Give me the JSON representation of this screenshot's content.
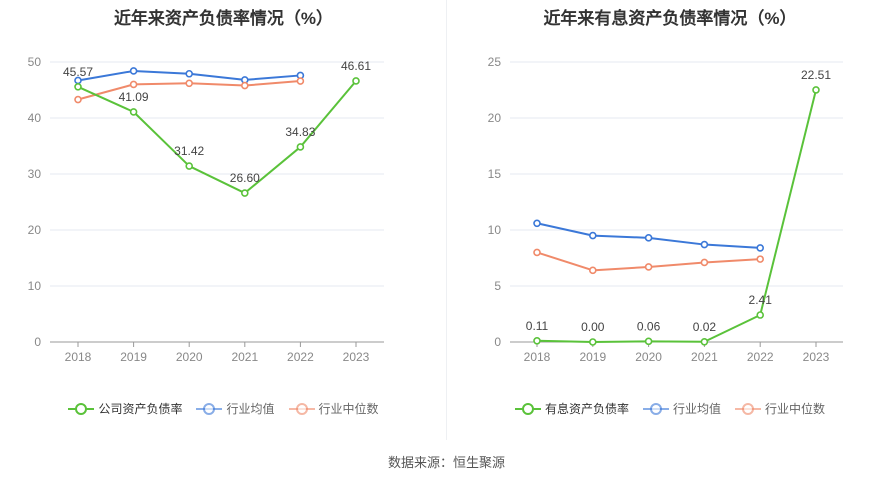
{
  "source_text": "数据来源：恒生聚源",
  "chart_data": [
    {
      "type": "line",
      "title": "近年来资产负债率情况（%）",
      "categories": [
        "2018",
        "2019",
        "2020",
        "2021",
        "2022",
        "2023"
      ],
      "ylim": [
        0,
        50
      ],
      "yticks": [
        0,
        10,
        20,
        30,
        40,
        50
      ],
      "grid": true,
      "legend_position": "bottom",
      "series": [
        {
          "name": "公司资产负债率",
          "color": "#5ac23a",
          "values": [
            45.57,
            41.09,
            31.42,
            26.6,
            34.83,
            46.61
          ],
          "labels": [
            "45.57",
            "41.09",
            "31.42",
            "26.60",
            "34.83",
            "46.61"
          ],
          "highlight": true
        },
        {
          "name": "行业均值",
          "color": "#3b78d8",
          "values": [
            46.7,
            48.4,
            47.9,
            46.8,
            47.6,
            null
          ]
        },
        {
          "name": "行业中位数",
          "color": "#f08a6a",
          "values": [
            43.3,
            46.0,
            46.2,
            45.8,
            46.6,
            null
          ]
        }
      ]
    },
    {
      "type": "line",
      "title": "近年来有息资产负债率情况（%）",
      "categories": [
        "2018",
        "2019",
        "2020",
        "2021",
        "2022",
        "2023"
      ],
      "ylim": [
        0,
        25
      ],
      "yticks": [
        0,
        5,
        10,
        15,
        20,
        25
      ],
      "grid": true,
      "legend_position": "bottom",
      "series": [
        {
          "name": "有息资产负债率",
          "color": "#5ac23a",
          "values": [
            0.11,
            0.0,
            0.06,
            0.02,
            2.41,
            22.51
          ],
          "labels": [
            "0.11",
            "0.00",
            "0.06",
            "0.02",
            "2.41",
            "22.51"
          ],
          "highlight": true
        },
        {
          "name": "行业均值",
          "color": "#3b78d8",
          "values": [
            10.6,
            9.5,
            9.3,
            8.7,
            8.4,
            null
          ]
        },
        {
          "name": "行业中位数",
          "color": "#f08a6a",
          "values": [
            8.0,
            6.4,
            6.7,
            7.1,
            7.4,
            null
          ]
        }
      ]
    }
  ]
}
